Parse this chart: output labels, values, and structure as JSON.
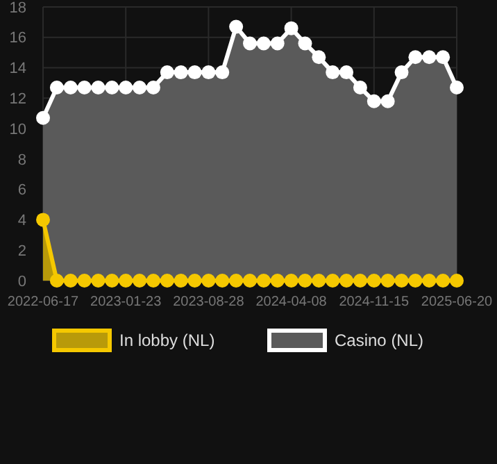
{
  "chart_data": {
    "type": "area",
    "categories": [
      "2022-06-17",
      null,
      null,
      null,
      null,
      null,
      "2023-01-23",
      null,
      null,
      null,
      null,
      null,
      "2023-08-28",
      null,
      null,
      null,
      null,
      null,
      "2024-04-08",
      null,
      null,
      null,
      null,
      null,
      "2024-11-15",
      null,
      null,
      null,
      null,
      null,
      "2025-06-20"
    ],
    "series": [
      {
        "name": "In lobby (NL)",
        "color": "#f5c800",
        "values": [
          4,
          0,
          0,
          0,
          0,
          0,
          0,
          0,
          0,
          0,
          0,
          0,
          0,
          0,
          0,
          0,
          0,
          0,
          0,
          0,
          0,
          0,
          0,
          0,
          0,
          0,
          0,
          0,
          0,
          0,
          0
        ]
      },
      {
        "name": "Casino (NL)",
        "color": "#ffffff",
        "values": [
          10.7,
          12.7,
          12.7,
          12.7,
          12.7,
          12.7,
          12.7,
          12.7,
          12.7,
          13.7,
          13.7,
          13.7,
          13.7,
          13.7,
          16.7,
          15.6,
          15.6,
          15.6,
          16.6,
          15.6,
          14.7,
          13.7,
          13.7,
          12.7,
          11.8,
          11.8,
          13.7,
          14.7,
          14.7,
          14.7,
          12.7
        ]
      }
    ],
    "ylim": [
      0,
      18
    ],
    "yticks": [
      0,
      2,
      4,
      6,
      8,
      10,
      12,
      14,
      16,
      18
    ],
    "grid": true,
    "legend": "bottom",
    "marker": "circle"
  }
}
